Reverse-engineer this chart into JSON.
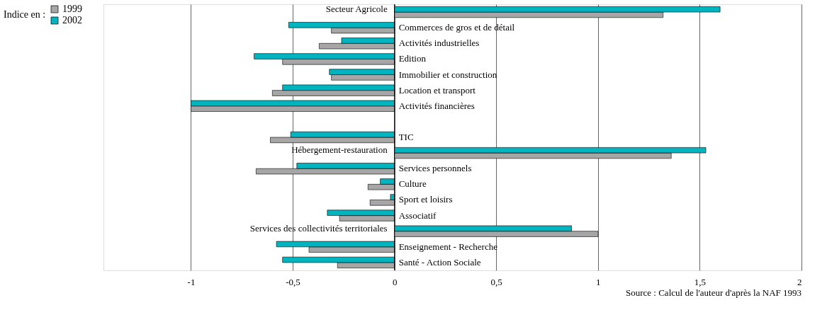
{
  "chart_data": {
    "type": "bar",
    "orientation": "horizontal",
    "categories": [
      "Secteur Agricole",
      "Commerces de gros et de détail",
      "Activités industrielles",
      "Edition",
      "Immobilier et construction",
      "Location et transport",
      "Activités financières",
      null,
      "TIC",
      "Hébergement-restauration",
      "Services personnels",
      "Culture",
      "Sport et loisirs",
      "Associatif",
      "Services des collectivités territoriales",
      "Enseignement - Recherche",
      "Santé - Action Sociale"
    ],
    "series": [
      {
        "name": "1999",
        "color": "#a6a6a6",
        "values": [
          1.32,
          -0.31,
          -0.37,
          -0.55,
          -0.31,
          -0.6,
          -1,
          null,
          -0.61,
          1.36,
          -0.68,
          -0.13,
          -0.12,
          -0.27,
          1.0,
          -0.42,
          -0.28
        ]
      },
      {
        "name": "2002",
        "color": "#00b4c0",
        "values": [
          1.6,
          -0.52,
          -0.26,
          -0.69,
          -0.32,
          -0.55,
          -1,
          null,
          -0.51,
          1.53,
          -0.48,
          -0.07,
          -0.02,
          -0.33,
          0.87,
          -0.58,
          -0.55
        ]
      }
    ],
    "xlim": [
      -1.43,
      2
    ],
    "xticks": [
      -1,
      {
        "value": -0.5,
        "label": "-0,5"
      },
      0,
      {
        "value": 0.5,
        "label": "0,5"
      },
      1,
      {
        "value": 1.5,
        "label": "1,5"
      },
      2
    ],
    "grid": "x",
    "legend": "left",
    "legend_title": "Indice en :",
    "annotations": [
      "Source :  Calcul de l'auteur d'après la NAF 1993"
    ]
  }
}
